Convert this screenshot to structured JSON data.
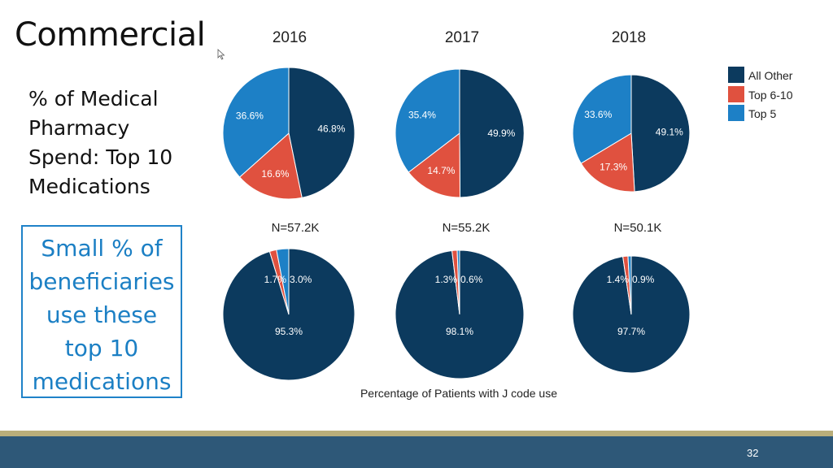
{
  "slide": {
    "title": "Commercial",
    "subtitle": "% of Medical\nPharmacy\nSpend: Top 10\nMedications",
    "callout": "Small % of\nbeneficiaries\nuse these\ntop 10\nmedications",
    "page_number": "32"
  },
  "colors": {
    "all_other": "#0c3a5e",
    "top_6_10": "#e0513f",
    "top_5": "#1d80c6"
  },
  "chart_data": {
    "type": "pie",
    "years": [
      "2016",
      "2017",
      "2018"
    ],
    "legend": [
      "All Other",
      "Top 6-10",
      "Top 5"
    ],
    "legend_position": "top-right",
    "xlabel": "Percentage of Patients with J code use",
    "spend": {
      "2016": {
        "All Other": 46.8,
        "Top 6-10": 16.6,
        "Top 5": 36.6
      },
      "2017": {
        "All Other": 49.9,
        "Top 6-10": 14.7,
        "Top 5": 35.4
      },
      "2018": {
        "All Other": 49.1,
        "Top 6-10": 17.3,
        "Top 5": 33.6
      }
    },
    "patients": {
      "2016": {
        "N": "N=57.2K",
        "All Other": 95.3,
        "Top 6-10": 1.7,
        "Top 5": 3.0
      },
      "2017": {
        "N": "N=55.2K",
        "All Other": 98.1,
        "Top 6-10": 1.3,
        "Top 5": 0.6
      },
      "2018": {
        "N": "N=50.1K",
        "All Other": 97.7,
        "Top 6-10": 1.4,
        "Top 5": 0.9
      }
    },
    "labels": {
      "2016": {
        "spend": [
          "46.8%",
          "16.6%",
          "36.6%"
        ],
        "patients": [
          "95.3%",
          "1.7%",
          "3.0%"
        ]
      },
      "2017": {
        "spend": [
          "49.9%",
          "14.7%",
          "35.4%"
        ],
        "patients": [
          "98.1%",
          "1.3%",
          "0.6%"
        ]
      },
      "2018": {
        "spend": [
          "49.1%",
          "17.3%",
          "33.6%"
        ],
        "patients": [
          "97.7%",
          "1.4%",
          "0.9%"
        ]
      }
    }
  }
}
